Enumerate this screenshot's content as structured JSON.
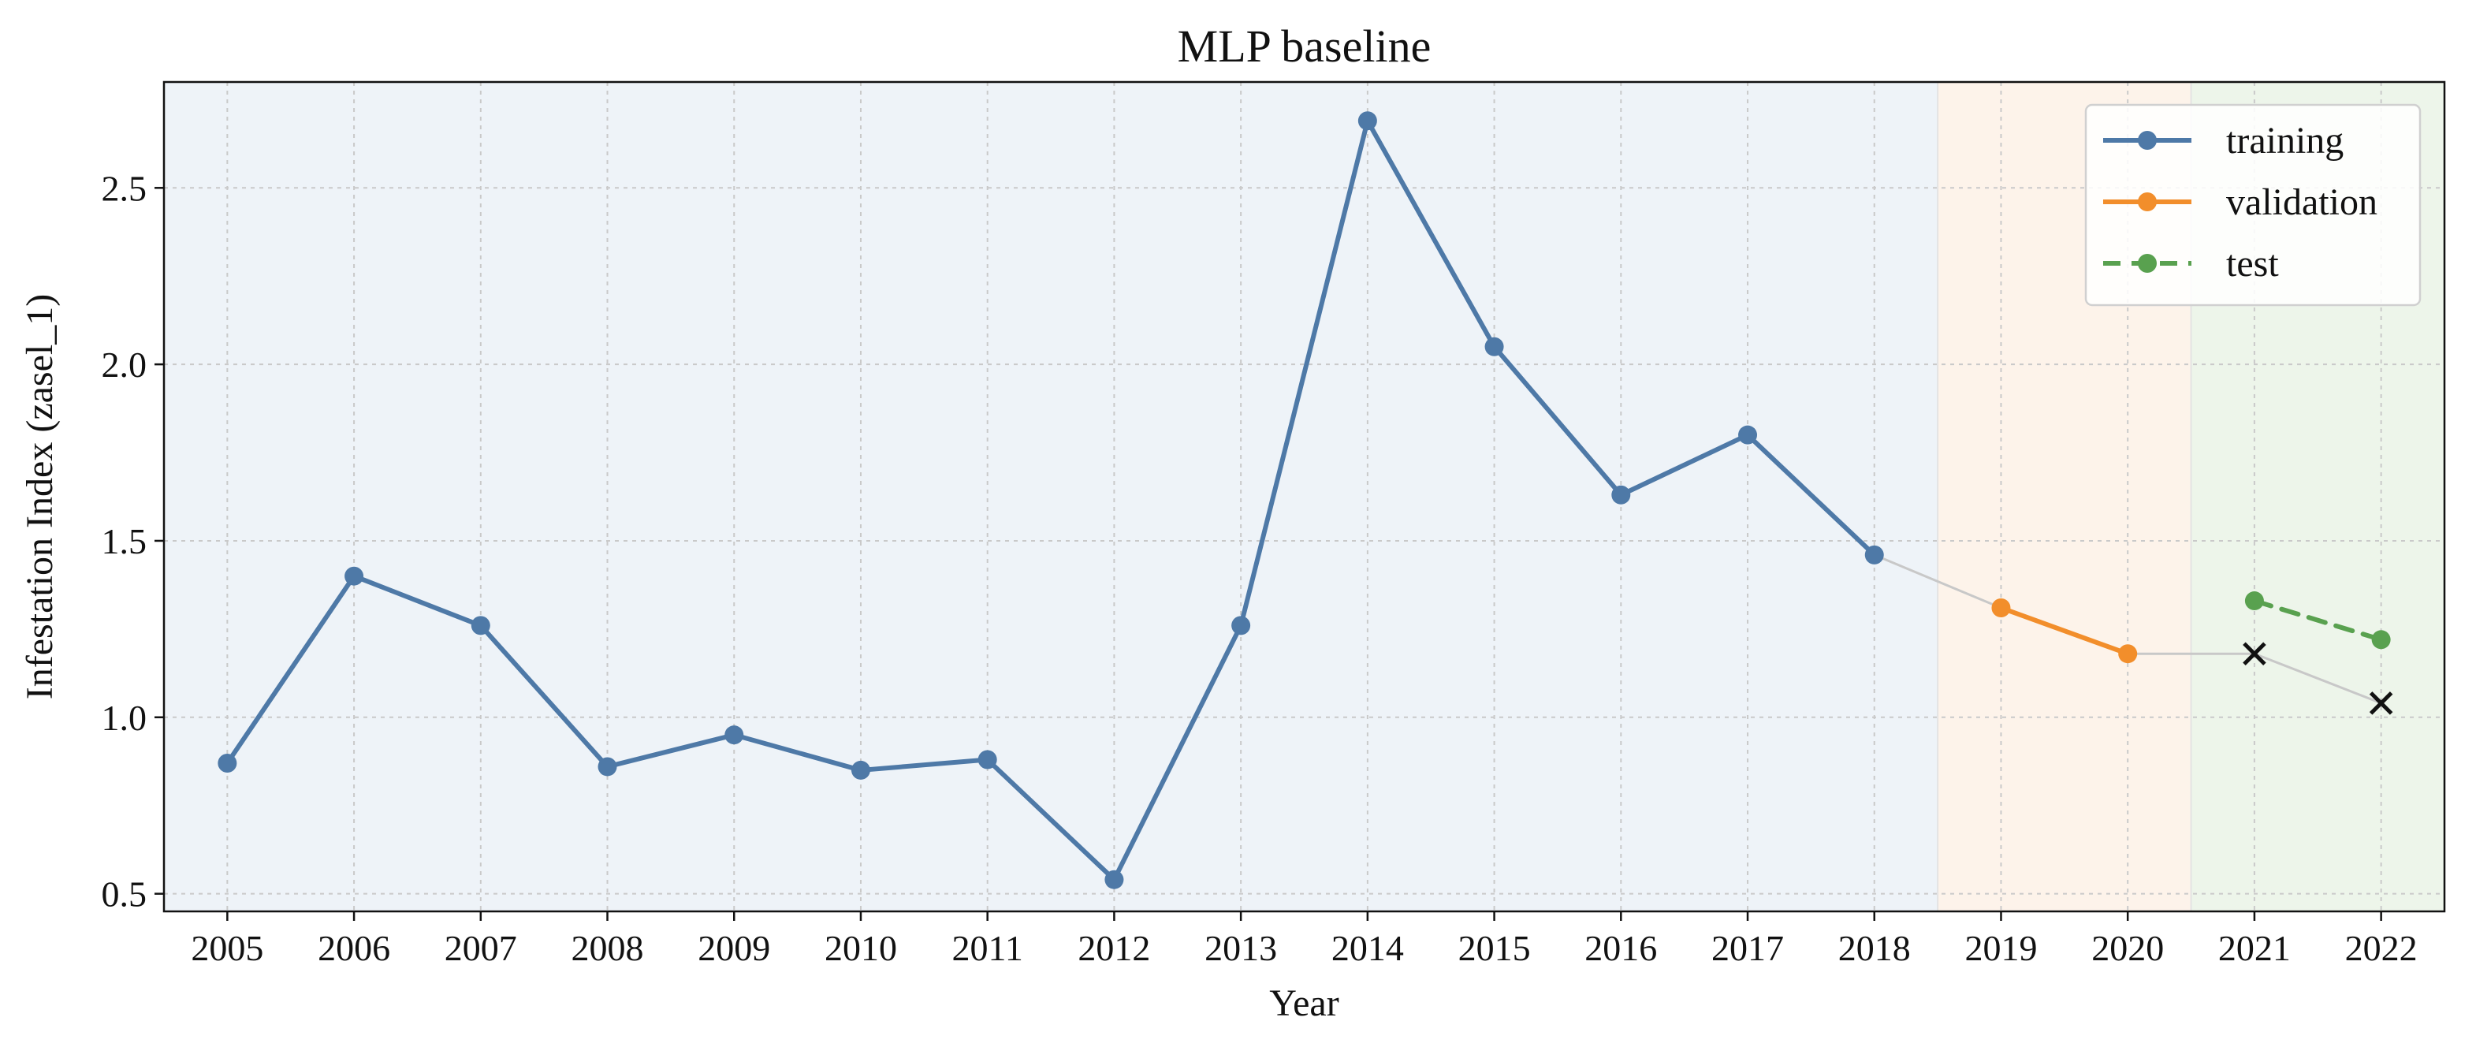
{
  "chart_data": {
    "type": "line",
    "title": "MLP baseline",
    "xlabel": "Year",
    "ylabel": "Infestation Index (zasel_1)",
    "xlim": [
      2004.5,
      2022.5
    ],
    "ylim": [
      0.45,
      2.8
    ],
    "x_ticks": [
      2005,
      2006,
      2007,
      2008,
      2009,
      2010,
      2011,
      2012,
      2013,
      2014,
      2015,
      2016,
      2017,
      2018,
      2019,
      2020,
      2021,
      2022
    ],
    "y_ticks": [
      "0.5",
      "1.0",
      "1.5",
      "2.0",
      "2.5"
    ],
    "grid": true,
    "legend_position": "top-right",
    "shaded_regions": [
      {
        "label": "training",
        "x_range": [
          2004.5,
          2018.5
        ],
        "color": "#eef3f8"
      },
      {
        "label": "validation",
        "x_range": [
          2018.5,
          2020.5
        ],
        "color": "#fdf3ea"
      },
      {
        "label": "test",
        "x_range": [
          2020.5,
          2022.5
        ],
        "color": "#edf5ea"
      }
    ],
    "series": [
      {
        "name": "training",
        "color": "#4e79a7",
        "line_style": "solid",
        "marker": "circle",
        "x": [
          2005,
          2006,
          2007,
          2008,
          2009,
          2010,
          2011,
          2012,
          2013,
          2014,
          2015,
          2016,
          2017,
          2018
        ],
        "values": [
          0.87,
          1.4,
          1.26,
          0.86,
          0.95,
          0.85,
          0.88,
          0.54,
          1.26,
          2.69,
          2.05,
          1.63,
          1.8,
          1.46
        ]
      },
      {
        "name": "validation",
        "color": "#f28e2b",
        "line_style": "solid",
        "marker": "circle",
        "x": [
          2019,
          2020
        ],
        "values": [
          1.31,
          1.18
        ]
      },
      {
        "name": "test",
        "color": "#59a14f",
        "line_style": "dashed",
        "marker": "circle",
        "x": [
          2021,
          2022
        ],
        "values": [
          1.33,
          1.22
        ]
      }
    ],
    "actual_values": {
      "color": "#111111",
      "marker": "x",
      "x": [
        2021,
        2022
      ],
      "values": [
        1.18,
        1.04
      ]
    },
    "connector": {
      "color": "#c8c8c8",
      "x": [
        2018,
        2019,
        2020,
        2021,
        2022
      ],
      "values": [
        1.46,
        1.31,
        1.18,
        1.18,
        1.04
      ]
    }
  }
}
